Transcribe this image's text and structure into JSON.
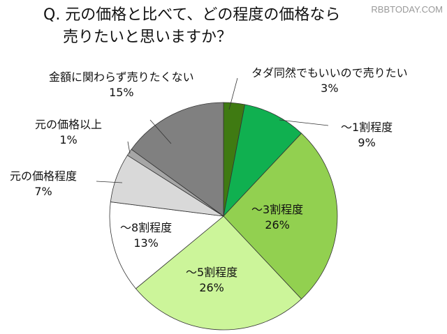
{
  "title": {
    "line1": "Q. 元の価格と比べて、どの程度の価格なら",
    "line2": "売りたいと思いますか？"
  },
  "watermark": "RBBTODAY.COM",
  "chart_data": {
    "type": "pie",
    "title": "Q. 元の価格と比べて、どの程度の価格なら売りたいと思いますか？",
    "categories": [
      "タダ同然でもいいので売りたい",
      "～1割程度",
      "～3割程度",
      "～5割程度",
      "～8割程度",
      "元の価格程度",
      "元の価格以上",
      "金額に関わらず売りたくない"
    ],
    "values": [
      3,
      9,
      26,
      26,
      13,
      7,
      1,
      15
    ],
    "colors": [
      "#3f7a12",
      "#10b050",
      "#92d050",
      "#ccf59a",
      "#ffffff",
      "#d9d9d9",
      "#a6a6a6",
      "#808080"
    ],
    "start_angle": "12 o'clock, clockwise",
    "legend": "none (data labels)"
  },
  "labels": [
    {
      "name": "タダ同然でもいいので売りたい",
      "pct": "3%"
    },
    {
      "name": "～1割程度",
      "pct": "9%"
    },
    {
      "name": "～3割程度",
      "pct": "26%"
    },
    {
      "name": "～5割程度",
      "pct": "26%"
    },
    {
      "name": "～8割程度",
      "pct": "13%"
    },
    {
      "name": "元の価格程度",
      "pct": "7%"
    },
    {
      "name": "元の価格以上",
      "pct": "1%"
    },
    {
      "name": "金額に関わらず売りたくない",
      "pct": "15%"
    }
  ]
}
